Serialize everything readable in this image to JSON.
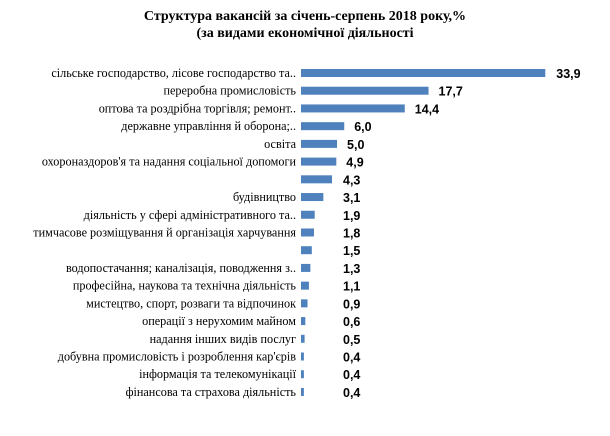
{
  "chart_data": {
    "type": "bar",
    "orientation": "horizontal",
    "title_line1": "Структура вакансій за січень-серпень 2018 року,%",
    "title_line2": "(за видами економічної діяльності",
    "categories": [
      "сільське господарство, лісове господарство та..",
      "переробна промисловість",
      "оптова та роздрібна торгівля; ремонт..",
      "державне управління й оборона;..",
      "освіта",
      "охороназдоров'я та надання соціальної допомоги",
      "",
      "будівництво",
      "діяльність у сфері адміністративного та..",
      "тимчасове розміщування й організація харчування",
      "",
      "водопостачання; каналізація, поводження з..",
      "професійна, наукова та технічна діяльність",
      "мистецтво, спорт, розваги та відпочинок",
      "операції з нерухомим майном",
      "надання інших видів послуг",
      "добувна промисловість і розроблення кар'єрів",
      "інформація та телекомунікації",
      "фінансова та страхова діяльність"
    ],
    "values": [
      33.9,
      17.7,
      14.4,
      6.0,
      5.0,
      4.9,
      4.3,
      3.1,
      1.9,
      1.8,
      1.5,
      1.3,
      1.1,
      0.9,
      0.6,
      0.5,
      0.4,
      0.4,
      0.4
    ],
    "value_labels": [
      "33,9",
      "17,7",
      "14,4",
      "6,0",
      "5,0",
      "4,9",
      "4,3",
      "3,1",
      "1,9",
      "1,8",
      "1,5",
      "1,3",
      "1,1",
      "0,9",
      "0,6",
      "0,5",
      "0,4",
      "0,4",
      "0,4"
    ],
    "xlim": [
      0,
      34
    ],
    "grid": false,
    "legend": "none",
    "bar_color": "#4f81bd"
  }
}
